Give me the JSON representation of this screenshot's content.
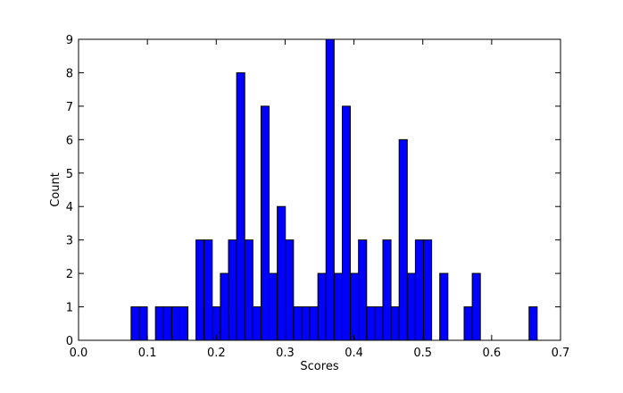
{
  "chart_data": {
    "type": "bar",
    "title": "",
    "xlabel": "Scores",
    "ylabel": "Count",
    "xlim": [
      0.0,
      0.7
    ],
    "ylim": [
      0,
      9
    ],
    "xticks": [
      "0.0",
      "0.1",
      "0.2",
      "0.3",
      "0.4",
      "0.5",
      "0.6",
      "0.7"
    ],
    "yticks": [
      "0",
      "1",
      "2",
      "3",
      "4",
      "5",
      "6",
      "7",
      "8",
      "9"
    ],
    "grid": false,
    "legend": "none",
    "bar_color": "#0000ff",
    "bar_edge_color": "#000000",
    "bin_width": 0.0118,
    "bins": [
      {
        "x": 0.0763,
        "count": 1
      },
      {
        "x": 0.0881,
        "count": 1
      },
      {
        "x": 0.1117,
        "count": 1
      },
      {
        "x": 0.1235,
        "count": 1
      },
      {
        "x": 0.1353,
        "count": 1
      },
      {
        "x": 0.1471,
        "count": 1
      },
      {
        "x": 0.1706,
        "count": 3
      },
      {
        "x": 0.1824,
        "count": 3
      },
      {
        "x": 0.1942,
        "count": 1
      },
      {
        "x": 0.206,
        "count": 2
      },
      {
        "x": 0.2178,
        "count": 3
      },
      {
        "x": 0.2296,
        "count": 8
      },
      {
        "x": 0.2414,
        "count": 3
      },
      {
        "x": 0.2532,
        "count": 1
      },
      {
        "x": 0.265,
        "count": 7
      },
      {
        "x": 0.2768,
        "count": 2
      },
      {
        "x": 0.2886,
        "count": 4
      },
      {
        "x": 0.3004,
        "count": 3
      },
      {
        "x": 0.3122,
        "count": 1
      },
      {
        "x": 0.324,
        "count": 1
      },
      {
        "x": 0.3358,
        "count": 1
      },
      {
        "x": 0.3476,
        "count": 2
      },
      {
        "x": 0.3594,
        "count": 9
      },
      {
        "x": 0.3712,
        "count": 2
      },
      {
        "x": 0.383,
        "count": 7
      },
      {
        "x": 0.3948,
        "count": 2
      },
      {
        "x": 0.4066,
        "count": 3
      },
      {
        "x": 0.4184,
        "count": 1
      },
      {
        "x": 0.4302,
        "count": 1
      },
      {
        "x": 0.442,
        "count": 3
      },
      {
        "x": 0.4538,
        "count": 1
      },
      {
        "x": 0.4656,
        "count": 6
      },
      {
        "x": 0.4774,
        "count": 2
      },
      {
        "x": 0.4892,
        "count": 3
      },
      {
        "x": 0.501,
        "count": 3
      },
      {
        "x": 0.5246,
        "count": 2
      },
      {
        "x": 0.56,
        "count": 1
      },
      {
        "x": 0.5718,
        "count": 2
      },
      {
        "x": 0.6543,
        "count": 1
      }
    ]
  }
}
